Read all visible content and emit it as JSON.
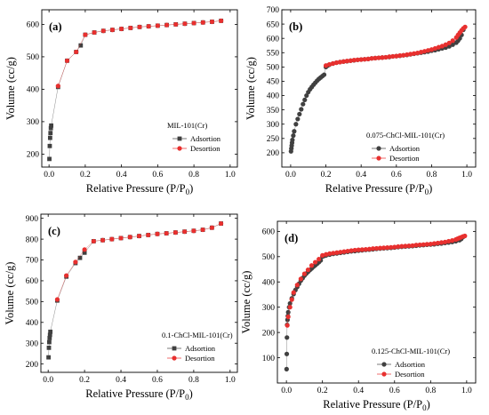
{
  "chart_data": [
    {
      "type": "scatter",
      "panel_label": "(a)",
      "legend_title": "MIL-101(Cr)",
      "xlabel": "Relative Pressure (P/P",
      "xlabel_sub": "0",
      "xlabel_close": ")",
      "ylabel": "Volume (cc/g)",
      "xlim": [
        -0.04,
        1.04
      ],
      "ylim": [
        160,
        645
      ],
      "xticks": [
        "0.0",
        "0.2",
        "0.4",
        "0.6",
        "0.8",
        "1.0"
      ],
      "xtick_values": [
        0,
        0.2,
        0.4,
        0.6,
        0.8,
        1.0
      ],
      "yticks": [
        "200",
        "300",
        "400",
        "500",
        "600"
      ],
      "ytick_values": [
        200,
        300,
        400,
        500,
        600
      ],
      "legend_position": "center-right",
      "series": [
        {
          "name": "Adsortion",
          "color": "#404040",
          "marker": "square",
          "x": [
            0.002,
            0.004,
            0.006,
            0.008,
            0.01,
            0.012,
            0.05,
            0.1,
            0.15,
            0.175,
            0.2,
            0.25,
            0.3,
            0.35,
            0.4,
            0.45,
            0.5,
            0.55,
            0.6,
            0.65,
            0.7,
            0.75,
            0.8,
            0.85,
            0.9,
            0.95
          ],
          "y": [
            185,
            225,
            250,
            265,
            280,
            288,
            407,
            488,
            515,
            535,
            568,
            575,
            580,
            583,
            586,
            589,
            592,
            594,
            596,
            598,
            600,
            602,
            604,
            606,
            608,
            611
          ]
        },
        {
          "name": "Desortion",
          "color": "#e8302f",
          "marker": "circle",
          "x": [
            0.95,
            0.9,
            0.85,
            0.8,
            0.75,
            0.7,
            0.65,
            0.6,
            0.55,
            0.5,
            0.45,
            0.4,
            0.35,
            0.3,
            0.25,
            0.2,
            0.15,
            0.1,
            0.05
          ],
          "y": [
            611,
            608,
            606,
            604,
            602,
            600,
            598,
            596,
            594,
            592,
            589,
            586,
            583,
            580,
            575,
            568,
            515,
            488,
            410
          ]
        }
      ]
    },
    {
      "type": "scatter",
      "panel_label": "(b)",
      "legend_title": "0.075-ChCl-MIL-101(Cr)",
      "xlabel": "Relative Pressure (P/P",
      "xlabel_sub": "0",
      "xlabel_close": ")",
      "ylabel": "Volume (cc/g)",
      "xlim": [
        -0.05,
        1.05
      ],
      "ylim": [
        150,
        700
      ],
      "xticks": [
        "0.0",
        "0.2",
        "0.4",
        "0.6",
        "0.8",
        "1.0"
      ],
      "xtick_values": [
        0,
        0.2,
        0.4,
        0.6,
        0.8,
        1.0
      ],
      "yticks": [
        "200",
        "250",
        "300",
        "350",
        "400",
        "450",
        "500",
        "550",
        "600",
        "650",
        "700"
      ],
      "ytick_values": [
        200,
        250,
        300,
        350,
        400,
        450,
        500,
        550,
        600,
        650,
        700
      ],
      "legend_position": "bottom-right",
      "series": [
        {
          "name": "Adsortion",
          "color": "#404040",
          "marker": "circle",
          "x": [
            0.002,
            0.004,
            0.006,
            0.008,
            0.01,
            0.015,
            0.02,
            0.03,
            0.04,
            0.05,
            0.06,
            0.07,
            0.08,
            0.09,
            0.1,
            0.11,
            0.12,
            0.13,
            0.14,
            0.15,
            0.16,
            0.17,
            0.18,
            0.19,
            0.2,
            0.21,
            0.22,
            0.24,
            0.26,
            0.28,
            0.3,
            0.32,
            0.34,
            0.36,
            0.38,
            0.4,
            0.42,
            0.44,
            0.46,
            0.48,
            0.5,
            0.52,
            0.54,
            0.56,
            0.58,
            0.6,
            0.62,
            0.64,
            0.66,
            0.68,
            0.7,
            0.72,
            0.74,
            0.76,
            0.78,
            0.8,
            0.82,
            0.84,
            0.86,
            0.88,
            0.9,
            0.92,
            0.94,
            0.95,
            0.96,
            0.97,
            0.98
          ],
          "y": [
            205,
            215,
            225,
            235,
            245,
            260,
            275,
            300,
            318,
            335,
            352,
            370,
            385,
            400,
            412,
            422,
            430,
            438,
            445,
            452,
            458,
            463,
            468,
            473,
            500,
            505,
            508,
            512,
            515,
            517,
            519,
            520,
            522,
            523,
            525,
            526,
            527,
            528,
            530,
            531,
            532,
            533,
            534,
            535,
            537,
            538,
            539,
            541,
            542,
            544,
            546,
            548,
            550,
            552,
            554,
            557,
            559,
            562,
            565,
            568,
            572,
            578,
            585,
            592,
            600,
            612,
            630
          ]
        },
        {
          "name": "Desortion",
          "color": "#e8302f",
          "marker": "circle",
          "x": [
            0.99,
            0.98,
            0.97,
            0.96,
            0.95,
            0.94,
            0.92,
            0.9,
            0.88,
            0.86,
            0.84,
            0.82,
            0.8,
            0.78,
            0.76,
            0.74,
            0.72,
            0.7,
            0.68,
            0.66,
            0.64,
            0.62,
            0.6,
            0.58,
            0.56,
            0.54,
            0.52,
            0.5,
            0.48,
            0.46,
            0.44,
            0.42,
            0.4,
            0.38,
            0.36,
            0.34,
            0.32,
            0.3,
            0.28,
            0.26,
            0.24,
            0.22,
            0.2
          ],
          "y": [
            640,
            635,
            628,
            620,
            612,
            603,
            592,
            584,
            578,
            573,
            569,
            565,
            561,
            558,
            555,
            552,
            549,
            547,
            545,
            543,
            541,
            540,
            538,
            537,
            536,
            534,
            533,
            532,
            531,
            530,
            528,
            527,
            526,
            525,
            524,
            522,
            521,
            519,
            517,
            515,
            512,
            509,
            505
          ]
        }
      ]
    },
    {
      "type": "scatter",
      "panel_label": "(c)",
      "legend_title": "0.1-ChCl-MIL-101(Cr)",
      "xlabel": "Relative Pressure (P/P",
      "xlabel_sub": "0",
      "xlabel_close": ")",
      "ylabel": "Volume (cc/g)",
      "xlim": [
        -0.04,
        1.04
      ],
      "ylim": [
        160,
        920
      ],
      "xticks": [
        "0.0",
        "0.2",
        "0.4",
        "0.6",
        "0.8",
        "1.0"
      ],
      "xtick_values": [
        0,
        0.2,
        0.4,
        0.6,
        0.8,
        1.0
      ],
      "yticks": [
        "200",
        "300",
        "400",
        "500",
        "600",
        "700",
        "800",
        "900"
      ],
      "ytick_values": [
        200,
        300,
        400,
        500,
        600,
        700,
        800,
        900
      ],
      "legend_position": "bottom-right",
      "series": [
        {
          "name": "Adsortion",
          "color": "#404040",
          "marker": "square",
          "x": [
            0.002,
            0.004,
            0.006,
            0.008,
            0.01,
            0.012,
            0.05,
            0.1,
            0.15,
            0.175,
            0.2,
            0.25,
            0.3,
            0.35,
            0.4,
            0.45,
            0.5,
            0.55,
            0.6,
            0.65,
            0.7,
            0.75,
            0.8,
            0.85,
            0.9,
            0.95
          ],
          "y": [
            232,
            278,
            305,
            325,
            340,
            355,
            505,
            620,
            685,
            710,
            735,
            790,
            795,
            800,
            805,
            810,
            815,
            820,
            825,
            828,
            832,
            836,
            840,
            845,
            855,
            875
          ]
        },
        {
          "name": "Desortion",
          "color": "#e8302f",
          "marker": "circle",
          "x": [
            0.95,
            0.9,
            0.85,
            0.8,
            0.75,
            0.7,
            0.65,
            0.6,
            0.55,
            0.5,
            0.45,
            0.4,
            0.35,
            0.3,
            0.25,
            0.2,
            0.15,
            0.1,
            0.05
          ],
          "y": [
            875,
            855,
            845,
            840,
            836,
            832,
            828,
            825,
            820,
            815,
            810,
            805,
            800,
            795,
            790,
            750,
            690,
            625,
            510
          ]
        }
      ]
    },
    {
      "type": "scatter",
      "panel_label": "(d)",
      "legend_title": "0.125-ChCl-MIL-101(Cr)",
      "xlabel": "Relative Pressure (P/P",
      "xlabel_sub": "0",
      "xlabel_close": ")",
      "ylabel": "Volume (cc/g)",
      "xlim": [
        -0.05,
        1.05
      ],
      "ylim": [
        0,
        640
      ],
      "xticks": [
        "0.0",
        "0.2",
        "0.4",
        "0.6",
        "0.8",
        "1.0"
      ],
      "xtick_values": [
        0,
        0.2,
        0.4,
        0.6,
        0.8,
        1.0
      ],
      "yticks": [
        "100",
        "200",
        "300",
        "400",
        "500",
        "600"
      ],
      "ytick_values": [
        100,
        200,
        300,
        400,
        500,
        600
      ],
      "legend_position": "bottom-right",
      "series": [
        {
          "name": "Adsortion",
          "color": "#404040",
          "marker": "circle",
          "x": [
            0.001,
            0.002,
            0.003,
            0.004,
            0.006,
            0.008,
            0.01,
            0.015,
            0.02,
            0.03,
            0.04,
            0.05,
            0.06,
            0.07,
            0.08,
            0.09,
            0.1,
            0.11,
            0.12,
            0.13,
            0.14,
            0.15,
            0.16,
            0.17,
            0.18,
            0.19,
            0.2,
            0.21,
            0.22,
            0.24,
            0.26,
            0.28,
            0.3,
            0.32,
            0.34,
            0.36,
            0.38,
            0.4,
            0.42,
            0.44,
            0.46,
            0.48,
            0.5,
            0.52,
            0.54,
            0.56,
            0.58,
            0.6,
            0.62,
            0.64,
            0.66,
            0.68,
            0.7,
            0.72,
            0.74,
            0.76,
            0.78,
            0.8,
            0.82,
            0.84,
            0.86,
            0.88,
            0.9,
            0.92,
            0.94,
            0.96,
            0.97,
            0.98
          ],
          "y": [
            55,
            115,
            180,
            230,
            250,
            265,
            280,
            300,
            315,
            335,
            352,
            368,
            380,
            393,
            405,
            415,
            425,
            433,
            440,
            447,
            453,
            460,
            466,
            472,
            478,
            485,
            500,
            503,
            505,
            508,
            511,
            513,
            515,
            517,
            519,
            521,
            522,
            524,
            525,
            527,
            528,
            529,
            531,
            532,
            533,
            534,
            535,
            536,
            538,
            539,
            540,
            541,
            542,
            543,
            545,
            546,
            547,
            548,
            549,
            551,
            552,
            554,
            556,
            558,
            561,
            565,
            570,
            578
          ]
        },
        {
          "name": "Desortion",
          "color": "#e8302f",
          "marker": "circle",
          "x": [
            0.99,
            0.98,
            0.97,
            0.96,
            0.95,
            0.94,
            0.92,
            0.9,
            0.88,
            0.86,
            0.84,
            0.82,
            0.8,
            0.78,
            0.76,
            0.74,
            0.72,
            0.7,
            0.68,
            0.66,
            0.64,
            0.62,
            0.6,
            0.58,
            0.56,
            0.54,
            0.52,
            0.5,
            0.48,
            0.46,
            0.44,
            0.42,
            0.4,
            0.38,
            0.36,
            0.34,
            0.32,
            0.3,
            0.28,
            0.26,
            0.24,
            0.22,
            0.2,
            0.18,
            0.16,
            0.14,
            0.12,
            0.1,
            0.08,
            0.06,
            0.04,
            0.03,
            0.02,
            0.01,
            0.005
          ],
          "y": [
            582,
            580,
            577,
            574,
            571,
            568,
            564,
            561,
            558,
            556,
            554,
            552,
            550,
            549,
            548,
            547,
            546,
            544,
            543,
            542,
            541,
            540,
            538,
            537,
            536,
            535,
            534,
            533,
            532,
            530,
            529,
            528,
            527,
            526,
            524,
            522,
            520,
            518,
            516,
            514,
            512,
            509,
            505,
            490,
            478,
            465,
            448,
            432,
            412,
            388,
            358,
            330,
            300,
            262,
            228
          ]
        }
      ]
    }
  ]
}
